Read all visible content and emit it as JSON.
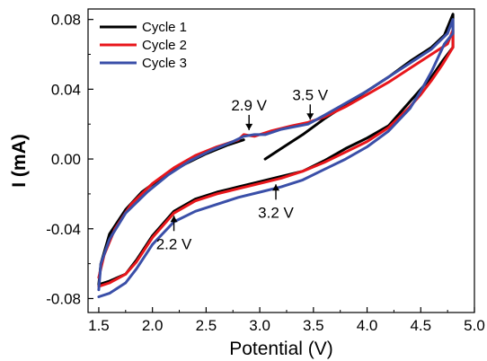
{
  "chart_data": {
    "type": "line",
    "title": "",
    "xlabel": "Potential (V)",
    "ylabel": "I (mA)",
    "xlim": [
      1.4,
      5.0
    ],
    "ylim": [
      -0.088,
      0.086
    ],
    "xticks": [
      1.5,
      2.0,
      2.5,
      3.0,
      3.5,
      4.0,
      4.5,
      5.0
    ],
    "xtick_labels": [
      "1.5",
      "2.0",
      "2.5",
      "3.0",
      "3.5",
      "4.0",
      "4.5",
      "5.0"
    ],
    "yticks": [
      -0.08,
      -0.04,
      0.0,
      0.04,
      0.08
    ],
    "ytick_labels": [
      "-0.08",
      "-0.04",
      "0.00",
      "0.04",
      "0.08"
    ],
    "grid": false,
    "legend_position": "top-left",
    "series": [
      {
        "name": "Cycle 1",
        "color": "#000000",
        "points": [
          [
            3.05,
            0.0
          ],
          [
            3.2,
            0.006
          ],
          [
            3.4,
            0.014
          ],
          [
            3.6,
            0.023
          ],
          [
            3.8,
            0.031
          ],
          [
            4.0,
            0.039
          ],
          [
            4.2,
            0.047
          ],
          [
            4.4,
            0.056
          ],
          [
            4.6,
            0.064
          ],
          [
            4.72,
            0.071
          ],
          [
            4.8,
            0.083
          ],
          [
            4.8,
            0.064
          ],
          [
            4.7,
            0.056
          ],
          [
            4.6,
            0.047
          ],
          [
            4.5,
            0.04
          ],
          [
            4.4,
            0.033
          ],
          [
            4.2,
            0.019
          ],
          [
            4.0,
            0.012
          ],
          [
            3.8,
            0.006
          ],
          [
            3.6,
            -0.001
          ],
          [
            3.4,
            -0.007
          ],
          [
            3.2,
            -0.01
          ],
          [
            3.0,
            -0.013
          ],
          [
            2.8,
            -0.016
          ],
          [
            2.6,
            -0.019
          ],
          [
            2.4,
            -0.023
          ],
          [
            2.2,
            -0.03
          ],
          [
            2.0,
            -0.044
          ],
          [
            1.85,
            -0.058
          ],
          [
            1.75,
            -0.066
          ],
          [
            1.6,
            -0.07
          ],
          [
            1.5,
            -0.072
          ],
          [
            1.52,
            -0.06
          ],
          [
            1.6,
            -0.043
          ],
          [
            1.75,
            -0.029
          ],
          [
            1.9,
            -0.019
          ],
          [
            2.1,
            -0.01
          ],
          [
            2.3,
            -0.003
          ],
          [
            2.5,
            0.003
          ],
          [
            2.7,
            0.008
          ],
          [
            2.85,
            0.011
          ]
        ]
      },
      {
        "name": "Cycle 2",
        "color": "#e8161b",
        "points": [
          [
            1.5,
            -0.068
          ],
          [
            1.55,
            -0.055
          ],
          [
            1.65,
            -0.04
          ],
          [
            1.8,
            -0.026
          ],
          [
            2.0,
            -0.014
          ],
          [
            2.2,
            -0.005
          ],
          [
            2.4,
            0.002
          ],
          [
            2.6,
            0.007
          ],
          [
            2.8,
            0.011
          ],
          [
            2.85,
            0.014
          ],
          [
            2.95,
            0.013
          ],
          [
            3.1,
            0.016
          ],
          [
            3.3,
            0.019
          ],
          [
            3.45,
            0.021
          ],
          [
            3.6,
            0.024
          ],
          [
            3.8,
            0.03
          ],
          [
            4.0,
            0.037
          ],
          [
            4.2,
            0.044
          ],
          [
            4.4,
            0.052
          ],
          [
            4.6,
            0.06
          ],
          [
            4.75,
            0.066
          ],
          [
            4.8,
            0.074
          ],
          [
            4.8,
            0.064
          ],
          [
            4.7,
            0.054
          ],
          [
            4.6,
            0.045
          ],
          [
            4.5,
            0.037
          ],
          [
            4.4,
            0.03
          ],
          [
            4.2,
            0.018
          ],
          [
            4.0,
            0.01
          ],
          [
            3.8,
            0.004
          ],
          [
            3.6,
            -0.002
          ],
          [
            3.4,
            -0.007
          ],
          [
            3.2,
            -0.011
          ],
          [
            3.0,
            -0.014
          ],
          [
            2.8,
            -0.017
          ],
          [
            2.6,
            -0.02
          ],
          [
            2.4,
            -0.024
          ],
          [
            2.2,
            -0.031
          ],
          [
            2.0,
            -0.045
          ],
          [
            1.85,
            -0.059
          ],
          [
            1.75,
            -0.066
          ],
          [
            1.6,
            -0.071
          ],
          [
            1.5,
            -0.073
          ]
        ]
      },
      {
        "name": "Cycle 3",
        "color": "#3a4fa8",
        "points": [
          [
            1.5,
            -0.075
          ],
          [
            1.52,
            -0.06
          ],
          [
            1.6,
            -0.046
          ],
          [
            1.75,
            -0.031
          ],
          [
            1.95,
            -0.019
          ],
          [
            2.15,
            -0.009
          ],
          [
            2.35,
            -0.001
          ],
          [
            2.55,
            0.005
          ],
          [
            2.75,
            0.01
          ],
          [
            2.85,
            0.013
          ],
          [
            2.95,
            0.014
          ],
          [
            3.05,
            0.014
          ],
          [
            3.2,
            0.017
          ],
          [
            3.45,
            0.02
          ],
          [
            3.6,
            0.025
          ],
          [
            3.8,
            0.032
          ],
          [
            4.0,
            0.039
          ],
          [
            4.2,
            0.047
          ],
          [
            4.4,
            0.055
          ],
          [
            4.6,
            0.063
          ],
          [
            4.75,
            0.072
          ],
          [
            4.8,
            0.08
          ],
          [
            4.8,
            0.072
          ],
          [
            4.72,
            0.066
          ],
          [
            4.6,
            0.05
          ],
          [
            4.5,
            0.039
          ],
          [
            4.4,
            0.029
          ],
          [
            4.2,
            0.016
          ],
          [
            4.0,
            0.007
          ],
          [
            3.8,
            0.0
          ],
          [
            3.6,
            -0.006
          ],
          [
            3.4,
            -0.012
          ],
          [
            3.2,
            -0.016
          ],
          [
            3.0,
            -0.019
          ],
          [
            2.8,
            -0.022
          ],
          [
            2.6,
            -0.026
          ],
          [
            2.4,
            -0.03
          ],
          [
            2.2,
            -0.036
          ],
          [
            2.0,
            -0.049
          ],
          [
            1.85,
            -0.063
          ],
          [
            1.75,
            -0.071
          ],
          [
            1.6,
            -0.077
          ],
          [
            1.5,
            -0.079
          ]
        ]
      }
    ],
    "annotations": [
      {
        "text": "2.9 V",
        "x": 2.9,
        "y": 0.015,
        "label_side": "above"
      },
      {
        "text": "3.5 V",
        "x": 3.47,
        "y": 0.021,
        "label_side": "above"
      },
      {
        "text": "3.2 V",
        "x": 3.15,
        "y": -0.013,
        "label_side": "below"
      },
      {
        "text": "2.2 V",
        "x": 2.2,
        "y": -0.031,
        "label_side": "below"
      }
    ]
  }
}
